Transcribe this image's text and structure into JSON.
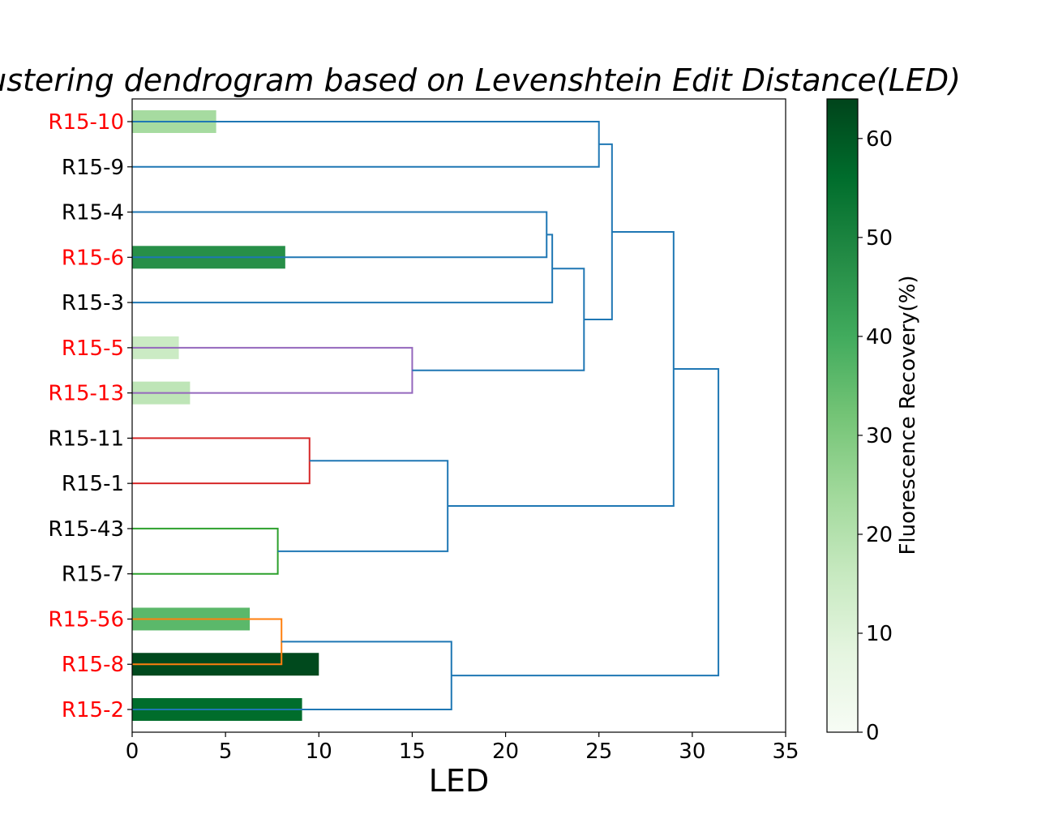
{
  "chart_data": {
    "type": "dendrogram",
    "title": "Clustering dendrogram based on Levenshtein Edit Distance(LED)",
    "xlabel": "LED",
    "xlim": [
      0,
      35
    ],
    "xticks": [
      0,
      5,
      10,
      15,
      20,
      25,
      30,
      35
    ],
    "leaves": [
      {
        "label": "R15-10",
        "highlight": true,
        "recovery": 23
      },
      {
        "label": "R15-9",
        "highlight": false,
        "recovery": null
      },
      {
        "label": "R15-4",
        "highlight": false,
        "recovery": null
      },
      {
        "label": "R15-6",
        "highlight": true,
        "recovery": 47
      },
      {
        "label": "R15-3",
        "highlight": false,
        "recovery": null
      },
      {
        "label": "R15-5",
        "highlight": true,
        "recovery": 15
      },
      {
        "label": "R15-13",
        "highlight": true,
        "recovery": 18
      },
      {
        "label": "R15-11",
        "highlight": false,
        "recovery": null
      },
      {
        "label": "R15-1",
        "highlight": false,
        "recovery": null
      },
      {
        "label": "R15-43",
        "highlight": false,
        "recovery": null
      },
      {
        "label": "R15-7",
        "highlight": false,
        "recovery": null
      },
      {
        "label": "R15-56",
        "highlight": true,
        "recovery": 36
      },
      {
        "label": "R15-8",
        "highlight": true,
        "recovery": 63
      },
      {
        "label": "R15-2",
        "highlight": true,
        "recovery": 56
      }
    ],
    "bars": [
      {
        "leaf": "R15-10",
        "led": 4.5
      },
      {
        "leaf": "R15-6",
        "led": 8.2
      },
      {
        "leaf": "R15-5",
        "led": 2.5
      },
      {
        "leaf": "R15-13",
        "led": 3.1
      },
      {
        "leaf": "R15-56",
        "led": 6.3
      },
      {
        "leaf": "R15-8",
        "led": 10.0
      },
      {
        "leaf": "R15-2",
        "led": 9.1
      }
    ],
    "links": [
      {
        "id": "c10_9",
        "left": "R15-10",
        "right": "R15-9",
        "distance": 25.0,
        "color": "#1f77b4"
      },
      {
        "id": "c4_6",
        "left": "R15-4",
        "right": "R15-6",
        "distance": 22.2,
        "color": "#1f77b4"
      },
      {
        "id": "c463",
        "left": "c4_6",
        "right": "R15-3",
        "distance": 22.5,
        "color": "#1f77b4"
      },
      {
        "id": "c5_13",
        "left": "R15-5",
        "right": "R15-13",
        "distance": 15.0,
        "color": "#9467bd"
      },
      {
        "id": "cB",
        "left": "c463",
        "right": "c5_13",
        "distance": 24.2,
        "color": "#1f77b4"
      },
      {
        "id": "cTop",
        "left": "c10_9",
        "right": "cB",
        "distance": 25.7,
        "color": "#1f77b4"
      },
      {
        "id": "c11_1",
        "left": "R15-11",
        "right": "R15-1",
        "distance": 9.5,
        "color": "#d62728"
      },
      {
        "id": "c43_7",
        "left": "R15-43",
        "right": "R15-7",
        "distance": 7.8,
        "color": "#2ca02c"
      },
      {
        "id": "cMid",
        "left": "c11_1",
        "right": "c43_7",
        "distance": 16.9,
        "color": "#1f77b4"
      },
      {
        "id": "cUpper",
        "left": "cTop",
        "right": "cMid",
        "distance": 29.0,
        "color": "#1f77b4"
      },
      {
        "id": "c56_8",
        "left": "R15-56",
        "right": "R15-8",
        "distance": 8.0,
        "color": "#ff7f0e"
      },
      {
        "id": "cBot",
        "left": "c56_8",
        "right": "R15-2",
        "distance": 17.1,
        "color": "#1f77b4"
      },
      {
        "id": "cRoot",
        "left": "cUpper",
        "right": "cBot",
        "distance": 31.4,
        "color": "#1f77b4"
      }
    ],
    "colorbar": {
      "label": "Fluorescence Recovery(%)",
      "colormap": "Greens",
      "range": [
        0,
        64
      ],
      "ticks": [
        0,
        10,
        20,
        30,
        40,
        50,
        60
      ]
    },
    "colors": {
      "highlight_label": "#ff0000",
      "normal_label": "#000000",
      "greens": [
        "#f7fcf5",
        "#e5f5e0",
        "#c7e9c0",
        "#a1d99b",
        "#74c476",
        "#41ab5d",
        "#238b45",
        "#006d2c",
        "#00441b"
      ]
    }
  }
}
